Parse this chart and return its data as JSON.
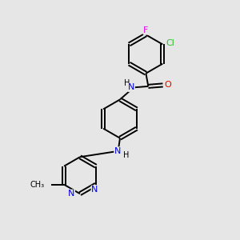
{
  "background_color": "#e6e6e6",
  "bond_color": "#000000",
  "atom_colors": {
    "F": "#ee00ee",
    "Cl": "#33bb33",
    "N": "#0000ee",
    "O": "#ee0000",
    "C": "#000000",
    "H": "#000000"
  },
  "font_size": 7.5,
  "fig_size": [
    3.0,
    3.0
  ],
  "dpi": 100
}
